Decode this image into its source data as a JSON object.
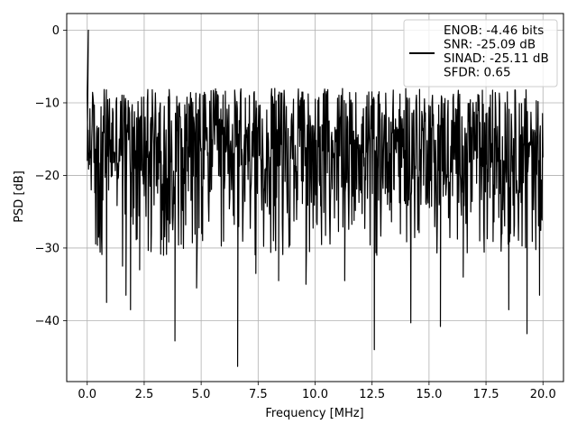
{
  "chart_data": {
    "type": "line",
    "title": "",
    "xlabel": "Frequency [MHz]",
    "ylabel": "PSD [dB]",
    "xlim": [
      -0.9,
      20.9
    ],
    "ylim": [
      -48.4,
      2.3
    ],
    "xticks": [
      0.0,
      2.5,
      5.0,
      7.5,
      10.0,
      12.5,
      15.0,
      17.5,
      20.0
    ],
    "xtick_labels": [
      "0.0",
      "2.5",
      "5.0",
      "7.5",
      "10.0",
      "12.5",
      "15.0",
      "17.5",
      "20.0"
    ],
    "yticks": [
      0,
      -10,
      -20,
      -30,
      -40
    ],
    "ytick_labels": [
      "0",
      "−10",
      "−20",
      "−30",
      "−40"
    ],
    "grid": true,
    "legend_position": "top-right",
    "legend": [
      "ENOB: -4.46 bits",
      "SNR: -25.09 dB",
      "SINAD: -25.11 dB",
      "SFDR: 0.65"
    ],
    "series": [
      {
        "color": "#000000",
        "points": 1024,
        "x_range": [
          0,
          20
        ],
        "typical_range_db": [
          -25,
          -8
        ],
        "peak": {
          "x": 0.05,
          "y": 0.0
        },
        "notable_minima": [
          {
            "x": 0.5,
            "y": -28.5
          },
          {
            "x": 0.85,
            "y": -37.5
          },
          {
            "x": 1.55,
            "y": -32.5
          },
          {
            "x": 1.7,
            "y": -36.5
          },
          {
            "x": 1.9,
            "y": -38.5
          },
          {
            "x": 2.3,
            "y": -33.0
          },
          {
            "x": 2.8,
            "y": -30.5
          },
          {
            "x": 3.35,
            "y": -31.0
          },
          {
            "x": 3.85,
            "y": -42.8
          },
          {
            "x": 4.8,
            "y": -35.5
          },
          {
            "x": 6.6,
            "y": -46.3
          },
          {
            "x": 7.4,
            "y": -33.5
          },
          {
            "x": 8.4,
            "y": -34.5
          },
          {
            "x": 9.6,
            "y": -35.0
          },
          {
            "x": 11.3,
            "y": -34.5
          },
          {
            "x": 12.6,
            "y": -44.0
          },
          {
            "x": 14.2,
            "y": -40.3
          },
          {
            "x": 15.5,
            "y": -40.8
          },
          {
            "x": 16.5,
            "y": -34.0
          },
          {
            "x": 18.5,
            "y": -38.5
          },
          {
            "x": 19.3,
            "y": -41.8
          },
          {
            "x": 19.85,
            "y": -36.5
          }
        ]
      }
    ]
  }
}
